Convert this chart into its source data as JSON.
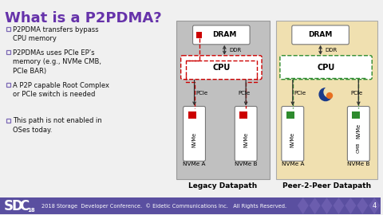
{
  "title": "What is a P2PDMA?",
  "title_color": "#6633aa",
  "title_fontsize": 13,
  "bg_color": "#f0f0f0",
  "footer_bg": "#5a4fa0",
  "footer_text": "2018 Storage  Developer Conference.  © Eidetic Communications Inc.   All Rights Reserved.",
  "bullet_color": "#7b68b5",
  "bullet_points": [
    "P2PDMA transfers bypass\nCPU memory",
    "P2PDMAs uses PCIe EP’s\nmemory (e.g., NVMe CMB,\nPCIe BAR)",
    "A P2P capable Root Complex\nor PCIe switch is needed",
    "This path is not enabled in\nOSes today."
  ],
  "legacy_bg": "#c0c0c0",
  "p2p_bg": "#f0e0b0",
  "legacy_label": "Legacy Datapath",
  "p2p_label": "Peer-2-Peer Datapath",
  "red_color": "#cc0000",
  "green_color": "#2e8b2e",
  "box_border": "#777777",
  "arrow_color": "#333333"
}
